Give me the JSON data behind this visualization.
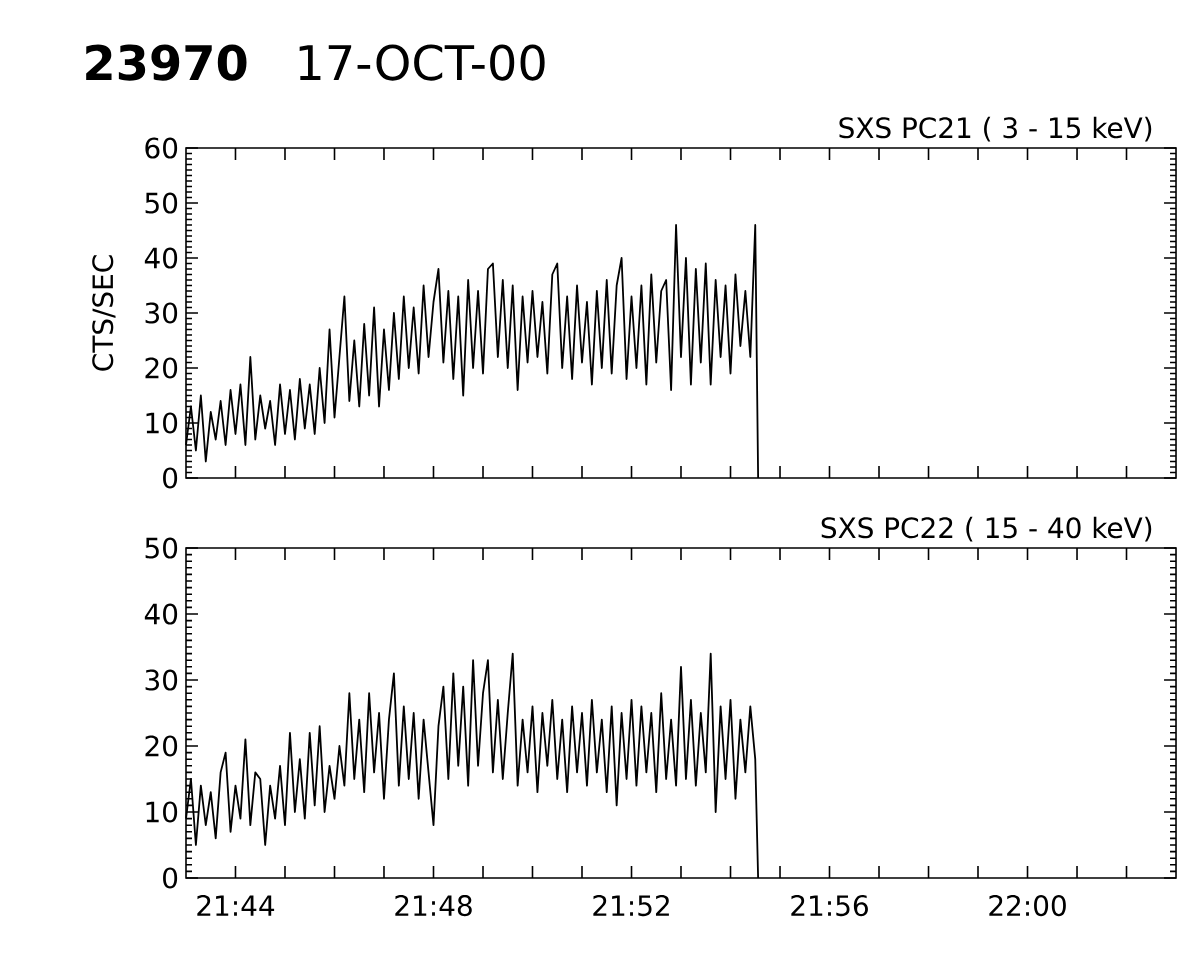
{
  "chart_data": [
    {
      "type": "line",
      "title": "23970",
      "subtitle": "17-OCT-00",
      "ylabel": "CTS/SEC",
      "tick_labels": "y",
      "x": [
        21.71667,
        21.71833,
        21.72,
        21.72167,
        21.72333,
        21.725,
        21.72667,
        21.72833,
        21.73,
        21.73167,
        21.73333,
        21.735,
        21.73667,
        21.73833,
        21.74,
        21.74167,
        21.74333,
        21.745,
        21.74667,
        21.74833,
        21.75,
        21.75167,
        21.75333,
        21.755,
        21.75667,
        21.75833,
        21.76,
        21.76167,
        21.76333,
        21.765,
        21.76667,
        21.76833,
        21.77,
        21.77167,
        21.77333,
        21.775,
        21.77667,
        21.77833,
        21.78,
        21.78167,
        21.78333,
        21.785,
        21.78667,
        21.78833,
        21.79,
        21.79167,
        21.79333,
        21.795,
        21.79667,
        21.79833,
        21.8,
        21.80167,
        21.80333,
        21.805,
        21.80667,
        21.80833,
        21.81,
        21.81167,
        21.81333,
        21.815,
        21.81667,
        21.81833,
        21.82,
        21.82167,
        21.82333,
        21.825,
        21.82667,
        21.82833,
        21.83,
        21.83167,
        21.83333,
        21.835,
        21.83667,
        21.83833,
        21.84,
        21.84167,
        21.84333,
        21.845,
        21.84667,
        21.84833,
        21.85,
        21.85167,
        21.85333,
        21.855,
        21.85667,
        21.85833,
        21.86,
        21.86167,
        21.86333,
        21.865,
        21.86667,
        21.86833,
        21.87,
        21.87167,
        21.87333,
        21.875,
        21.87667,
        21.87833,
        21.88,
        21.88167,
        21.88333,
        21.885,
        21.88667,
        21.88833,
        21.89,
        21.89167,
        21.89333,
        21.895,
        21.89667,
        21.89833,
        21.9,
        21.90167,
        21.90333,
        21.905,
        21.90667,
        21.90833,
        21.9093
      ],
      "series": [
        {
          "name": "SXS PC21 ( 3 - 15 keV)",
          "color": "#000000",
          "values": [
            6,
            13,
            5,
            15,
            3,
            12,
            7,
            14,
            6,
            16,
            8,
            17,
            6,
            22,
            7,
            15,
            9,
            14,
            6,
            17,
            8,
            16,
            7,
            18,
            9,
            17,
            8,
            20,
            10,
            27,
            11,
            22,
            33,
            14,
            25,
            13,
            28,
            15,
            31,
            13,
            27,
            16,
            30,
            18,
            33,
            20,
            31,
            19,
            35,
            22,
            32,
            38,
            21,
            34,
            18,
            33,
            15,
            36,
            20,
            34,
            19,
            38,
            39,
            22,
            36,
            20,
            35,
            16,
            33,
            21,
            34,
            22,
            32,
            19,
            37,
            39,
            20,
            33,
            18,
            35,
            21,
            32,
            17,
            34,
            20,
            36,
            19,
            35,
            40,
            18,
            33,
            20,
            35,
            17,
            37,
            21,
            34,
            36,
            16,
            46,
            22,
            40,
            17,
            38,
            21,
            39,
            17,
            36,
            22,
            35,
            19,
            37,
            24,
            34,
            22,
            46,
            0
          ]
        }
      ],
      "xlim": [
        21.71667,
        22.05
      ],
      "ylim": [
        0,
        60
      ],
      "xticks": [
        {
          "value": 21.73333,
          "label": null
        },
        {
          "value": 21.75,
          "label": null
        },
        {
          "value": 21.76667,
          "label": null
        },
        {
          "value": 21.78333,
          "label": null
        },
        {
          "value": 21.8,
          "label": null
        },
        {
          "value": 21.81667,
          "label": null
        },
        {
          "value": 21.83333,
          "label": null
        },
        {
          "value": 21.85,
          "label": null
        },
        {
          "value": 21.86667,
          "label": null
        },
        {
          "value": 21.88333,
          "label": null
        },
        {
          "value": 21.9,
          "label": null
        },
        {
          "value": 21.91667,
          "label": null
        },
        {
          "value": 21.93333,
          "label": null
        },
        {
          "value": 21.95,
          "label": null
        },
        {
          "value": 21.96667,
          "label": null
        },
        {
          "value": 21.98333,
          "label": null
        },
        {
          "value": 22.0,
          "label": null
        },
        {
          "value": 22.01667,
          "label": null
        },
        {
          "value": 22.03333,
          "label": null
        }
      ],
      "yticks": [
        0,
        {
          "value": 1,
          "label": null
        },
        {
          "value": 2,
          "label": null
        },
        {
          "value": 3,
          "label": null
        },
        {
          "value": 4,
          "label": null
        },
        {
          "value": 5,
          "label": null
        },
        {
          "value": 6,
          "label": null
        },
        {
          "value": 7,
          "label": null
        },
        {
          "value": 8,
          "label": null
        },
        {
          "value": 9,
          "label": null
        },
        10,
        {
          "value": 11,
          "label": null
        },
        {
          "value": 12,
          "label": null
        },
        {
          "value": 13,
          "label": null
        },
        {
          "value": 14,
          "label": null
        },
        {
          "value": 15,
          "label": null
        },
        {
          "value": 16,
          "label": null
        },
        {
          "value": 17,
          "label": null
        },
        {
          "value": 18,
          "label": null
        },
        {
          "value": 19,
          "label": null
        },
        20,
        {
          "value": 21,
          "label": null
        },
        {
          "value": 22,
          "label": null
        },
        {
          "value": 23,
          "label": null
        },
        {
          "value": 24,
          "label": null
        },
        {
          "value": 25,
          "label": null
        },
        {
          "value": 26,
          "label": null
        },
        {
          "value": 27,
          "label": null
        },
        {
          "value": 28,
          "label": null
        },
        {
          "value": 29,
          "label": null
        },
        30,
        {
          "value": 31,
          "label": null
        },
        {
          "value": 32,
          "label": null
        },
        {
          "value": 33,
          "label": null
        },
        {
          "value": 34,
          "label": null
        },
        {
          "value": 35,
          "label": null
        },
        {
          "value": 36,
          "label": null
        },
        {
          "value": 37,
          "label": null
        },
        {
          "value": 38,
          "label": null
        },
        {
          "value": 39,
          "label": null
        },
        40,
        {
          "value": 41,
          "label": null
        },
        {
          "value": 42,
          "label": null
        },
        {
          "value": 43,
          "label": null
        },
        {
          "value": 44,
          "label": null
        },
        {
          "value": 45,
          "label": null
        },
        {
          "value": 46,
          "label": null
        },
        {
          "value": 47,
          "label": null
        },
        {
          "value": 48,
          "label": null
        },
        {
          "value": 49,
          "label": null
        },
        50,
        {
          "value": 51,
          "label": null
        },
        {
          "value": 52,
          "label": null
        },
        {
          "value": 53,
          "label": null
        },
        {
          "value": 54,
          "label": null
        },
        {
          "value": 55,
          "label": null
        },
        {
          "value": 56,
          "label": null
        },
        {
          "value": 57,
          "label": null
        },
        {
          "value": 58,
          "label": null
        },
        {
          "value": 59,
          "label": null
        },
        60
      ]
    },
    {
      "type": "line",
      "x": [
        21.71667,
        21.71833,
        21.72,
        21.72167,
        21.72333,
        21.725,
        21.72667,
        21.72833,
        21.73,
        21.73167,
        21.73333,
        21.735,
        21.73667,
        21.73833,
        21.74,
        21.74167,
        21.74333,
        21.745,
        21.74667,
        21.74833,
        21.75,
        21.75167,
        21.75333,
        21.755,
        21.75667,
        21.75833,
        21.76,
        21.76167,
        21.76333,
        21.765,
        21.76667,
        21.76833,
        21.77,
        21.77167,
        21.77333,
        21.775,
        21.77667,
        21.77833,
        21.78,
        21.78167,
        21.78333,
        21.785,
        21.78667,
        21.78833,
        21.79,
        21.79167,
        21.79333,
        21.795,
        21.79667,
        21.79833,
        21.8,
        21.80167,
        21.80333,
        21.805,
        21.80667,
        21.80833,
        21.81,
        21.81167,
        21.81333,
        21.815,
        21.81667,
        21.81833,
        21.82,
        21.82167,
        21.82333,
        21.825,
        21.82667,
        21.82833,
        21.83,
        21.83167,
        21.83333,
        21.835,
        21.83667,
        21.83833,
        21.84,
        21.84167,
        21.84333,
        21.845,
        21.84667,
        21.84833,
        21.85,
        21.85167,
        21.85333,
        21.855,
        21.85667,
        21.85833,
        21.86,
        21.86167,
        21.86333,
        21.865,
        21.86667,
        21.86833,
        21.87,
        21.87167,
        21.87333,
        21.875,
        21.87667,
        21.87833,
        21.88,
        21.88167,
        21.88333,
        21.885,
        21.88667,
        21.88833,
        21.89,
        21.89167,
        21.89333,
        21.895,
        21.89667,
        21.89833,
        21.9,
        21.90167,
        21.90333,
        21.905,
        21.90667,
        21.90833,
        21.9093
      ],
      "series": [
        {
          "name": "SXS PC22 ( 15 - 40 keV)",
          "color": "#000000",
          "values": [
            9,
            15,
            5,
            14,
            8,
            13,
            6,
            16,
            19,
            7,
            14,
            9,
            21,
            8,
            16,
            15,
            5,
            14,
            9,
            17,
            8,
            22,
            10,
            18,
            9,
            22,
            11,
            23,
            10,
            17,
            12,
            20,
            14,
            28,
            15,
            24,
            13,
            28,
            16,
            25,
            12,
            24,
            31,
            14,
            26,
            15,
            25,
            12,
            24,
            16,
            8,
            23,
            29,
            15,
            31,
            17,
            29,
            14,
            33,
            17,
            28,
            33,
            16,
            27,
            15,
            25,
            34,
            14,
            24,
            16,
            26,
            13,
            25,
            17,
            27,
            15,
            24,
            13,
            26,
            16,
            25,
            14,
            27,
            16,
            24,
            13,
            26,
            11,
            25,
            15,
            27,
            14,
            26,
            16,
            25,
            13,
            28,
            15,
            24,
            14,
            32,
            15,
            27,
            14,
            25,
            16,
            34,
            10,
            26,
            15,
            27,
            12,
            24,
            16,
            26,
            18,
            0
          ]
        }
      ],
      "xlim": [
        21.71667,
        22.05
      ],
      "ylim": [
        0,
        50
      ],
      "xticks": [
        {
          "value": 21.73333,
          "label": "21:44"
        },
        {
          "value": 21.75,
          "label": null
        },
        {
          "value": 21.76667,
          "label": null
        },
        {
          "value": 21.78333,
          "label": null
        },
        {
          "value": 21.8,
          "label": "21:48"
        },
        {
          "value": 21.81667,
          "label": null
        },
        {
          "value": 21.83333,
          "label": null
        },
        {
          "value": 21.85,
          "label": null
        },
        {
          "value": 21.86667,
          "label": "21:52"
        },
        {
          "value": 21.88333,
          "label": null
        },
        {
          "value": 21.9,
          "label": null
        },
        {
          "value": 21.91667,
          "label": null
        },
        {
          "value": 21.93333,
          "label": "21:56"
        },
        {
          "value": 21.95,
          "label": null
        },
        {
          "value": 21.96667,
          "label": null
        },
        {
          "value": 21.98333,
          "label": null
        },
        {
          "value": 22.0,
          "label": "22:00"
        },
        {
          "value": 22.01667,
          "label": null
        },
        {
          "value": 22.03333,
          "label": null
        }
      ],
      "yticks": [
        0,
        {
          "value": 1,
          "label": null
        },
        {
          "value": 2,
          "label": null
        },
        {
          "value": 3,
          "label": null
        },
        {
          "value": 4,
          "label": null
        },
        {
          "value": 5,
          "label": null
        },
        {
          "value": 6,
          "label": null
        },
        {
          "value": 7,
          "label": null
        },
        {
          "value": 8,
          "label": null
        },
        {
          "value": 9,
          "label": null
        },
        10,
        {
          "value": 11,
          "label": null
        },
        {
          "value": 12,
          "label": null
        },
        {
          "value": 13,
          "label": null
        },
        {
          "value": 14,
          "label": null
        },
        {
          "value": 15,
          "label": null
        },
        {
          "value": 16,
          "label": null
        },
        {
          "value": 17,
          "label": null
        },
        {
          "value": 18,
          "label": null
        },
        {
          "value": 19,
          "label": null
        },
        20,
        {
          "value": 21,
          "label": null
        },
        {
          "value": 22,
          "label": null
        },
        {
          "value": 23,
          "label": null
        },
        {
          "value": 24,
          "label": null
        },
        {
          "value": 25,
          "label": null
        },
        {
          "value": 26,
          "label": null
        },
        {
          "value": 27,
          "label": null
        },
        {
          "value": 28,
          "label": null
        },
        {
          "value": 29,
          "label": null
        },
        30,
        {
          "value": 31,
          "label": null
        },
        {
          "value": 32,
          "label": null
        },
        {
          "value": 33,
          "label": null
        },
        {
          "value": 34,
          "label": null
        },
        {
          "value": 35,
          "label": null
        },
        {
          "value": 36,
          "label": null
        },
        {
          "value": 37,
          "label": null
        },
        {
          "value": 38,
          "label": null
        },
        {
          "value": 39,
          "label": null
        },
        40,
        {
          "value": 41,
          "label": null
        },
        {
          "value": 42,
          "label": null
        },
        {
          "value": 43,
          "label": null
        },
        {
          "value": 44,
          "label": null
        },
        {
          "value": 45,
          "label": null
        },
        {
          "value": 46,
          "label": null
        },
        {
          "value": 47,
          "label": null
        },
        {
          "value": 48,
          "label": null
        },
        {
          "value": 49,
          "label": null
        },
        50
      ]
    }
  ]
}
